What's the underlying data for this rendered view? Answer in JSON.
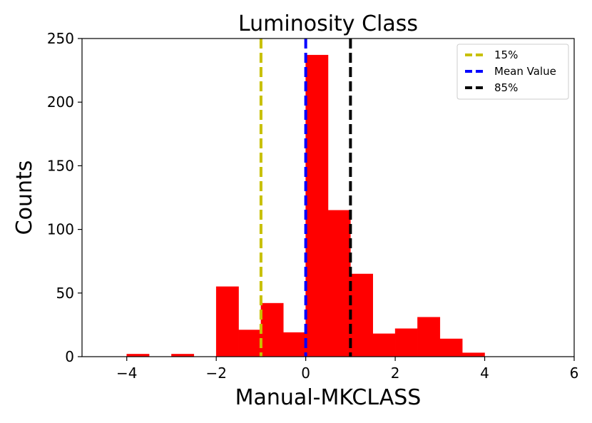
{
  "chart_data": {
    "type": "bar",
    "title": "Luminosity Class",
    "xlabel": "Manual-MKCLASS",
    "ylabel": "Counts",
    "xlim": [
      -5,
      6
    ],
    "ylim": [
      0,
      250
    ],
    "xticks": [
      -4,
      -2,
      0,
      2,
      4,
      6
    ],
    "xtick_labels": [
      "−4",
      "−2",
      "0",
      "2",
      "4",
      "6"
    ],
    "yticks": [
      0,
      50,
      100,
      150,
      200,
      250
    ],
    "ytick_labels": [
      "0",
      "50",
      "100",
      "150",
      "200",
      "250"
    ],
    "grid": false,
    "legend_position": "top-right",
    "bar_color": "#ff0000",
    "bins": [
      {
        "left": -4.0,
        "right": -3.5,
        "count": 2
      },
      {
        "left": -3.0,
        "right": -2.5,
        "count": 2
      },
      {
        "left": -2.0,
        "right": -1.5,
        "count": 55
      },
      {
        "left": -1.5,
        "right": -1.0,
        "count": 21
      },
      {
        "left": -1.0,
        "right": -0.5,
        "count": 42
      },
      {
        "left": -0.5,
        "right": 0.0,
        "count": 19
      },
      {
        "left": 0.0,
        "right": 0.5,
        "count": 237
      },
      {
        "left": 0.5,
        "right": 1.0,
        "count": 115
      },
      {
        "left": 1.0,
        "right": 1.5,
        "count": 65
      },
      {
        "left": 1.5,
        "right": 2.0,
        "count": 18
      },
      {
        "left": 2.0,
        "right": 2.5,
        "count": 22
      },
      {
        "left": 2.5,
        "right": 3.0,
        "count": 31
      },
      {
        "left": 3.0,
        "right": 3.5,
        "count": 14
      },
      {
        "left": 3.5,
        "right": 4.0,
        "count": 3
      }
    ],
    "vlines": [
      {
        "label": "15%",
        "x": -1.0,
        "color": "#c8c000"
      },
      {
        "label": "Mean Value",
        "x": 0.0,
        "color": "#0000ff"
      },
      {
        "label": "85%",
        "x": 1.0,
        "color": "#000000"
      }
    ]
  }
}
